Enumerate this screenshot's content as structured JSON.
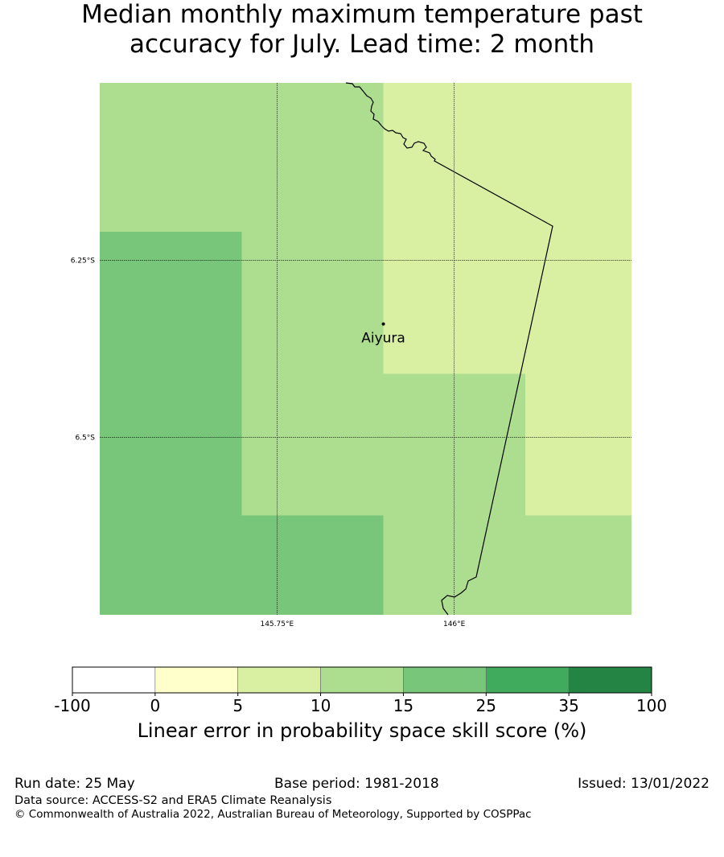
{
  "title_line1": "Median monthly maximum temperature past",
  "title_line2": "accuracy for July. Lead time: 2 month",
  "map": {
    "lat_gridlines": [
      {
        "value": -6.25,
        "label": "6.25°S"
      },
      {
        "value": -6.5,
        "label": "6.5°S"
      }
    ],
    "lon_gridlines": [
      {
        "value": 145.75,
        "label": "145.75°E"
      },
      {
        "value": 146.0,
        "label": "146°E"
      }
    ],
    "locations": [
      {
        "name": "Aiyura",
        "lon": 145.9,
        "lat": -6.34
      }
    ],
    "cells": [
      {
        "lon": [
          145.5,
          145.9
        ],
        "lat": [
          -6.0,
          -6.21
        ],
        "category": 3
      },
      {
        "lon": [
          145.9,
          146.25
        ],
        "lat": [
          -6.0,
          -6.41
        ],
        "category": 2
      },
      {
        "lon": [
          145.5,
          145.7
        ],
        "lat": [
          -6.21,
          -6.61
        ],
        "category": 4
      },
      {
        "lon": [
          145.7,
          145.9
        ],
        "lat": [
          -6.21,
          -6.61
        ],
        "category": 3
      },
      {
        "lon": [
          145.9,
          146.1
        ],
        "lat": [
          -6.41,
          -6.61
        ],
        "category": 3
      },
      {
        "lon": [
          146.1,
          146.25
        ],
        "lat": [
          -6.41,
          -6.61
        ],
        "category": 2
      },
      {
        "lon": [
          145.5,
          145.9
        ],
        "lat": [
          -6.61,
          -6.75
        ],
        "category": 4
      },
      {
        "lon": [
          145.9,
          146.25
        ],
        "lat": [
          -6.61,
          -6.75
        ],
        "category": 3
      }
    ]
  },
  "colorbar": {
    "ticks": [
      "-100",
      "0",
      "5",
      "10",
      "15",
      "25",
      "35",
      "100"
    ],
    "colors": [
      "#ffffff",
      "#ffffcc",
      "#d9f0a3",
      "#addd8e",
      "#78c679",
      "#41ab5d",
      "#238443"
    ],
    "label": "Linear error in probability space skill score (%)"
  },
  "footer": {
    "run_date": "Run date: 25 May",
    "base_period": "Base period: 1981-2018",
    "issued": "Issued: 13/01/2022",
    "data_source": "Data source: ACCESS-S2 and ERA5 Climate Reanalysis",
    "copyright": "© Commonwealth of Australia 2022, Australian Bureau of Meteorology, Supported by COSPPac"
  }
}
